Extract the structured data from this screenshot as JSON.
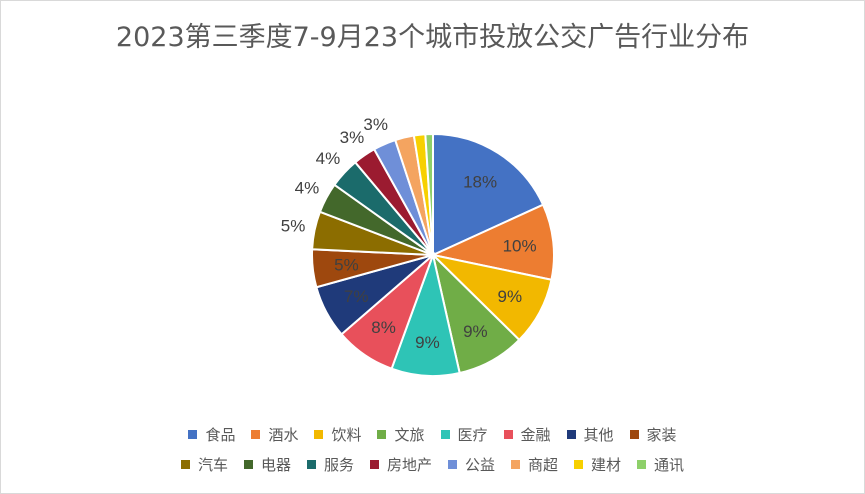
{
  "chart_data": {
    "type": "pie",
    "title": "2023第三季度7-9月23个城市投放公交广告行业分布",
    "categories": [
      "食品",
      "酒水",
      "饮料",
      "文旅",
      "医疗",
      "金融",
      "其他",
      "家装",
      "汽车",
      "电器",
      "服务",
      "房地产",
      "公益",
      "商超",
      "建材",
      "通讯"
    ],
    "values": [
      18,
      10,
      9,
      9,
      9,
      8,
      7,
      5,
      5,
      4,
      4,
      3,
      3,
      2.5,
      1.5,
      1
    ],
    "labels": [
      "18%",
      "10%",
      "9%",
      "9%",
      "9%",
      "8%",
      "7%",
      "5%",
      "5%",
      "4%",
      "4%",
      "3%",
      "3%",
      "",
      "",
      ""
    ],
    "colors": [
      "#4472C4",
      "#ED7D31",
      "#F2B800",
      "#70AD47",
      "#2EC4B6",
      "#E8505B",
      "#1F3A7A",
      "#9E480E",
      "#8C6D00",
      "#43682B",
      "#1B6B6B",
      "#9B1B30",
      "#6F8FD8",
      "#F4A460",
      "#F7D000",
      "#8ED06A"
    ],
    "legend_position": "bottom"
  }
}
